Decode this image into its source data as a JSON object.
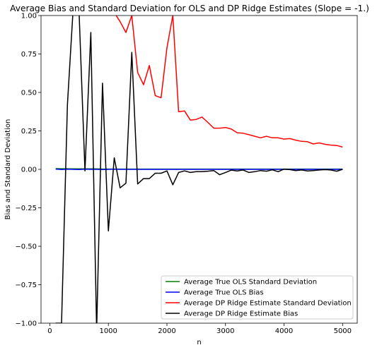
{
  "chart_data": {
    "type": "line",
    "title": "Average Bias and Standard Deviation for OLS and DP Ridge Estimates (Slope = -1.)",
    "xlabel": "n",
    "ylabel": "Bias and Standard Deviation",
    "xlim": [
      -150,
      5250
    ],
    "ylim": [
      -1.0,
      1.0
    ],
    "x_ticks": [
      0,
      1000,
      2000,
      3000,
      4000,
      5000
    ],
    "x_tick_labels": [
      "0",
      "1000",
      "2000",
      "3000",
      "4000",
      "5000"
    ],
    "y_ticks": [
      -1.0,
      -0.75,
      -0.5,
      -0.25,
      0.0,
      0.25,
      0.5,
      0.75,
      1.0
    ],
    "y_tick_labels": [
      "−1.00",
      "−0.75",
      "−0.50",
      "−0.25",
      "0.00",
      "0.25",
      "0.50",
      "0.75",
      "1.00"
    ],
    "grid": false,
    "legend_position": "lower-right",
    "series": [
      {
        "name": "Average True OLS Standard Deviation",
        "color": "#008000",
        "x": [
          100,
          200,
          300,
          400,
          500,
          600,
          700,
          800,
          900,
          1000,
          1100,
          1200,
          1300,
          1400,
          1500,
          1600,
          1700,
          1800,
          1900,
          2000,
          2100,
          2200,
          2300,
          2400,
          2500,
          2600,
          2700,
          2800,
          2900,
          3000,
          3100,
          3200,
          3300,
          3400,
          3500,
          3600,
          3700,
          3800,
          3900,
          4000,
          4100,
          4200,
          4300,
          4400,
          4500,
          4600,
          4700,
          4800,
          4900,
          5000
        ],
        "y": [
          0.005,
          0.004,
          0.004,
          0.003,
          0.003,
          0.003,
          0.003,
          0.003,
          0.002,
          0.002,
          0.002,
          0.002,
          0.002,
          0.002,
          0.002,
          0.002,
          0.002,
          0.002,
          0.002,
          0.002,
          0.002,
          0.002,
          0.002,
          0.002,
          0.002,
          0.002,
          0.002,
          0.002,
          0.002,
          0.002,
          0.002,
          0.002,
          0.002,
          0.002,
          0.002,
          0.002,
          0.002,
          0.002,
          0.002,
          0.002,
          0.002,
          0.002,
          0.002,
          0.002,
          0.002,
          0.002,
          0.002,
          0.002,
          0.002,
          0.002
        ]
      },
      {
        "name": "Average True OLS Bias",
        "color": "#0000ff",
        "x": [
          100,
          200,
          300,
          400,
          500,
          600,
          700,
          800,
          900,
          1000,
          1100,
          1200,
          1300,
          1400,
          1500,
          1600,
          1700,
          1800,
          1900,
          2000,
          2100,
          2200,
          2300,
          2400,
          2500,
          2600,
          2700,
          2800,
          2900,
          3000,
          3100,
          3200,
          3300,
          3400,
          3500,
          3600,
          3700,
          3800,
          3900,
          4000,
          4100,
          4200,
          4300,
          4400,
          4500,
          4600,
          4700,
          4800,
          4900,
          5000
        ],
        "y": [
          0.002,
          -0.001,
          0.001,
          0.0,
          -0.001,
          0.001,
          0.0,
          0.0,
          -0.001,
          0.0,
          0.001,
          0.0,
          0.0,
          0.0,
          0.0,
          0.0,
          0.0,
          0.0,
          0.0,
          0.0,
          0.0,
          0.0,
          0.0,
          0.0,
          0.0,
          0.0,
          0.0,
          0.0,
          0.0,
          0.0,
          0.0,
          0.0,
          0.0,
          0.0,
          0.0,
          0.0,
          0.0,
          0.0,
          0.0,
          0.0,
          0.0,
          0.0,
          0.0,
          0.0,
          0.0,
          0.0,
          0.0,
          0.0,
          0.0,
          0.0
        ]
      },
      {
        "name": "Average DP Ridge Estimate Standard Deviation",
        "color": "#ff0000",
        "x": [
          1100,
          1200,
          1300,
          1400,
          1500,
          1600,
          1700,
          1800,
          1900,
          2000,
          2100,
          2200,
          2300,
          2400,
          2500,
          2600,
          2700,
          2800,
          2900,
          3000,
          3100,
          3200,
          3300,
          3400,
          3500,
          3600,
          3700,
          3800,
          3900,
          4000,
          4100,
          4200,
          4300,
          4400,
          4500,
          4600,
          4700,
          4800,
          4900,
          5000
        ],
        "y": [
          1.02,
          0.96,
          0.89,
          1.0,
          0.63,
          0.55,
          0.675,
          0.48,
          0.465,
          0.79,
          1.0,
          0.375,
          0.38,
          0.32,
          0.325,
          0.34,
          0.305,
          0.268,
          0.268,
          0.272,
          0.262,
          0.238,
          0.235,
          0.225,
          0.215,
          0.205,
          0.215,
          0.205,
          0.205,
          0.197,
          0.2,
          0.19,
          0.182,
          0.18,
          0.165,
          0.172,
          0.163,
          0.158,
          0.155,
          0.145
        ]
      },
      {
        "name": "Average DP Ridge Estimate Bias",
        "color": "#000000",
        "x": [
          100,
          200,
          300,
          400,
          500,
          600,
          700,
          800,
          900,
          1000,
          1100,
          1200,
          1300,
          1400,
          1500,
          1600,
          1700,
          1800,
          1900,
          2000,
          2100,
          2200,
          2300,
          2400,
          2500,
          2600,
          2700,
          2800,
          2900,
          3000,
          3100,
          3200,
          3300,
          3400,
          3500,
          3600,
          3700,
          3800,
          3900,
          4000,
          4100,
          4200,
          4300,
          4400,
          4500,
          4600,
          4700,
          4800,
          4900,
          5000
        ],
        "y": [
          -1.0,
          -1.0,
          0.42,
          1.05,
          1.02,
          -0.01,
          0.89,
          -1.05,
          0.56,
          -0.4,
          0.075,
          -0.12,
          -0.09,
          0.76,
          -0.095,
          -0.06,
          -0.06,
          -0.025,
          -0.025,
          -0.01,
          -0.1,
          -0.02,
          -0.01,
          -0.02,
          -0.015,
          -0.015,
          -0.012,
          -0.008,
          -0.035,
          -0.02,
          -0.005,
          -0.01,
          -0.004,
          -0.02,
          -0.015,
          -0.008,
          -0.012,
          -0.003,
          -0.015,
          0.002,
          -0.002,
          -0.008,
          -0.004,
          -0.01,
          -0.008,
          -0.004,
          -0.002,
          -0.004,
          -0.012,
          0.0
        ]
      }
    ]
  }
}
